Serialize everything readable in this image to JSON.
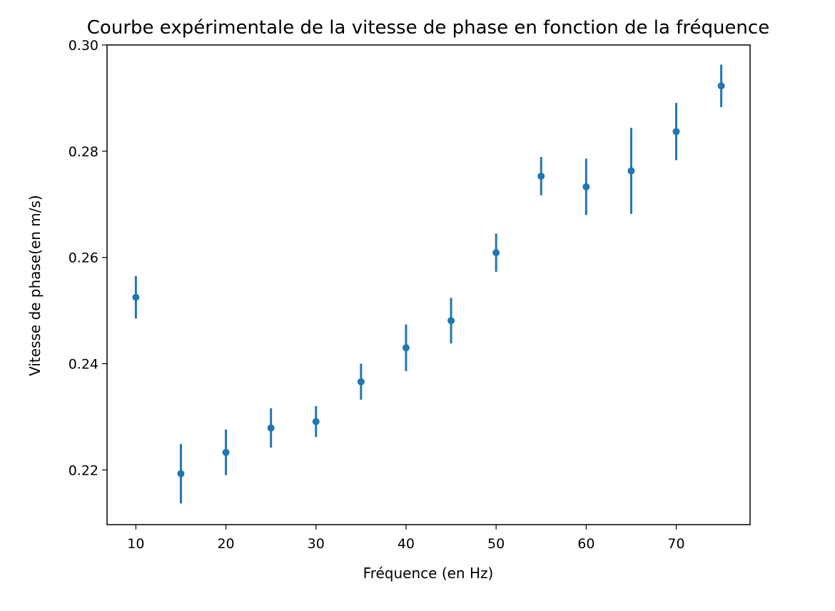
{
  "chart_data": {
    "type": "scatter",
    "title": "Courbe expérimentale de la vitesse de phase en fonction de la fréquence",
    "xlabel": "Fréquence (en Hz)",
    "ylabel": "Vitesse de phase(en m/s)",
    "xlim": [
      6.8,
      78.2
    ],
    "ylim": [
      0.2097,
      0.3
    ],
    "xticks": [
      10,
      20,
      30,
      40,
      50,
      60,
      70
    ],
    "xtick_labels": [
      "10",
      "20",
      "30",
      "40",
      "50",
      "60",
      "70"
    ],
    "yticks": [
      0.22,
      0.24,
      0.26,
      0.28,
      0.3
    ],
    "ytick_labels": [
      "0.22",
      "0.24",
      "0.26",
      "0.28",
      "0.30"
    ],
    "grid": false,
    "color": "#1f77b4",
    "series": [
      {
        "x": [
          10,
          15,
          20,
          25,
          30,
          35,
          40,
          45,
          50,
          55,
          60,
          65,
          70,
          75
        ],
        "y": [
          0.2525,
          0.2193,
          0.2233,
          0.2279,
          0.2291,
          0.2366,
          0.243,
          0.2481,
          0.2609,
          0.2753,
          0.2733,
          0.2763,
          0.2837,
          0.2923
        ],
        "yerr": [
          0.004,
          0.0056,
          0.0043,
          0.0037,
          0.0029,
          0.0034,
          0.0044,
          0.0043,
          0.0036,
          0.0036,
          0.0053,
          0.0081,
          0.0054,
          0.004
        ]
      }
    ]
  }
}
